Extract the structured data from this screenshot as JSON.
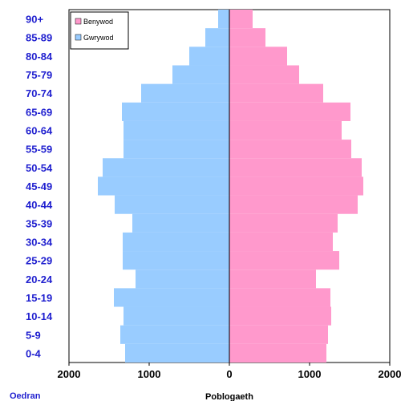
{
  "chart_data": {
    "type": "bar",
    "orientation": "horizontal",
    "categories": [
      "0-4",
      "5-9",
      "10-14",
      "15-19",
      "20-24",
      "25-29",
      "30-34",
      "35-39",
      "40-44",
      "45-49",
      "50-54",
      "55-59",
      "60-64",
      "65-69",
      "70-74",
      "75-79",
      "80-84",
      "85-89",
      "90+"
    ],
    "series": [
      {
        "name": "Benywod",
        "color": "#ff99cc",
        "side": "right",
        "values": [
          1210,
          1230,
          1270,
          1260,
          1080,
          1370,
          1290,
          1350,
          1600,
          1670,
          1650,
          1520,
          1400,
          1510,
          1170,
          870,
          720,
          450,
          290
        ]
      },
      {
        "name": "Gwrywod",
        "color": "#99ccff",
        "side": "left",
        "values": [
          1300,
          1360,
          1320,
          1440,
          1170,
          1330,
          1330,
          1210,
          1430,
          1640,
          1580,
          1320,
          1320,
          1340,
          1100,
          710,
          500,
          300,
          140
        ]
      }
    ],
    "x_ticks": [
      "2000",
      "1000",
      "0",
      "1000",
      "2000"
    ],
    "xlim": [
      -2000,
      2000
    ],
    "xlabel": "Poblogaeth",
    "ylabel": "Oedran",
    "grid": false,
    "legend_position": "top-left"
  }
}
